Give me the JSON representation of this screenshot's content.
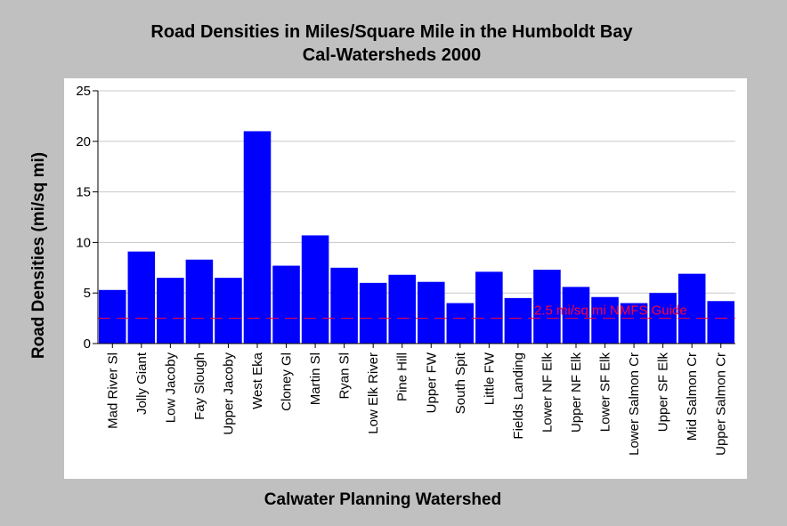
{
  "chart_data": {
    "type": "bar",
    "title": "Road Densities in Miles/Square Mile in the Humboldt Bay",
    "subtitle": "Cal-Watersheds 2000",
    "xlabel": "Calwater Planning Watershed",
    "ylabel": "Road Densities (mi/sq mi)",
    "ylim": [
      0,
      25
    ],
    "yticks": [
      "0",
      "5",
      "10",
      "15",
      "20",
      "25"
    ],
    "grid": true,
    "categories": [
      "Mad River Sl",
      "Jolly Giant",
      "Low Jacoby",
      "Fay Slough",
      "Upper Jacoby",
      "West Eka",
      "Cloney Gl",
      "Martin Sl",
      "Ryan Sl",
      "Low Elk River",
      "Pine Hill",
      "Upper FW",
      "South Spit",
      "Little FW",
      "Fields Landing",
      "Lower NF Elk",
      "Upper NF Elk",
      "Lower SF Elk",
      "Lower Salmon Cr",
      "Upper SF Elk",
      "Mid Salmon Cr",
      "Upper Salmon Cr"
    ],
    "values": [
      5.3,
      9.1,
      6.5,
      8.3,
      6.5,
      21.0,
      7.7,
      10.7,
      7.5,
      6.0,
      6.8,
      6.1,
      4.0,
      7.1,
      4.5,
      7.3,
      5.6,
      4.6,
      4.0,
      5.0,
      6.9,
      4.2
    ],
    "bar_color": "#0000ff",
    "reference_line": {
      "value": 2.5,
      "label": "2.5 mi/sq mi NMFS Guide",
      "color": "#ff0033"
    }
  }
}
